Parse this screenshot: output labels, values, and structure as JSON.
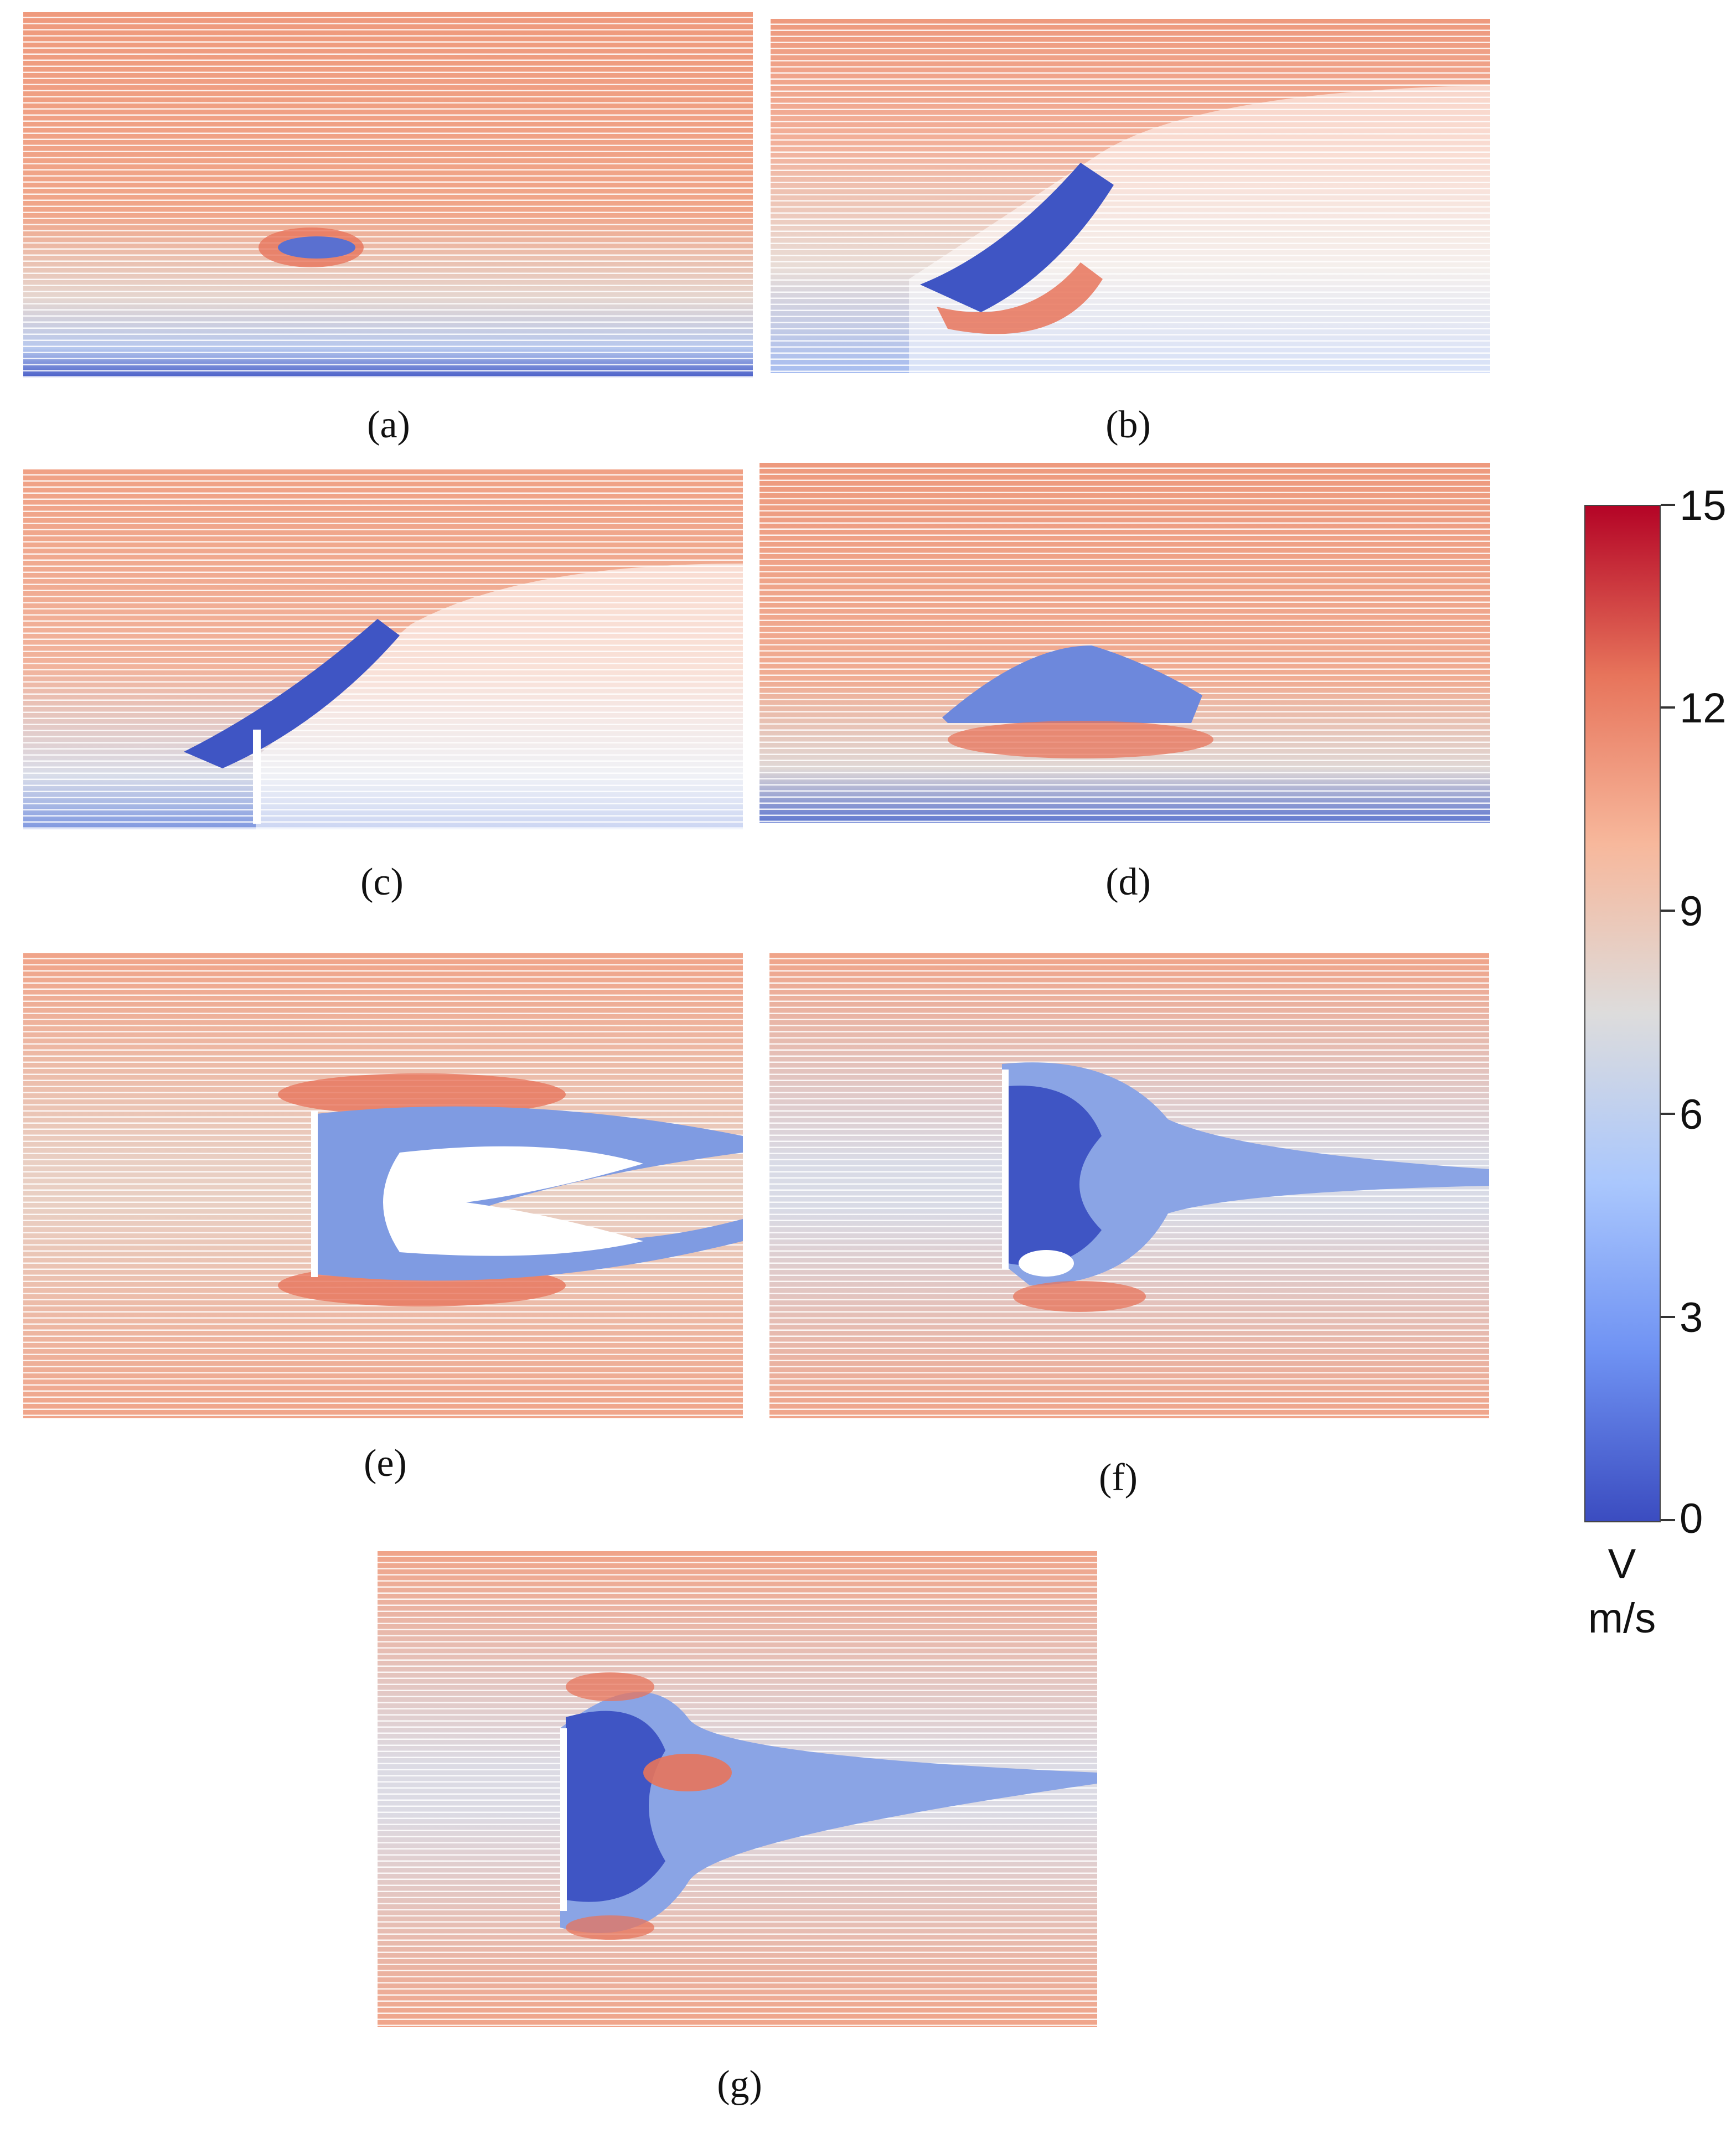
{
  "panels": [
    {
      "label": "(a)"
    },
    {
      "label": "(b)"
    },
    {
      "label": "(c)"
    },
    {
      "label": "(d)"
    },
    {
      "label": "(e)"
    },
    {
      "label": "(f)"
    },
    {
      "label": "(g)"
    }
  ],
  "colorbar": {
    "ticks": [
      "15",
      "12",
      "9",
      "6",
      "3",
      "0"
    ],
    "min": 0,
    "max": 15,
    "variable": "V",
    "unit": "m/s",
    "colors": [
      "#3b4cc0",
      "#6f92f3",
      "#aac7fd",
      "#dddcdc",
      "#f7b89c",
      "#e7745b",
      "#b40426"
    ]
  },
  "palette": {
    "fast_flow": "#ec8a6e",
    "mid_flow": "#e8d0c4",
    "slow_flow": "#4a5fc8",
    "wake": "#8aa6e6",
    "background": "#ffffff"
  }
}
